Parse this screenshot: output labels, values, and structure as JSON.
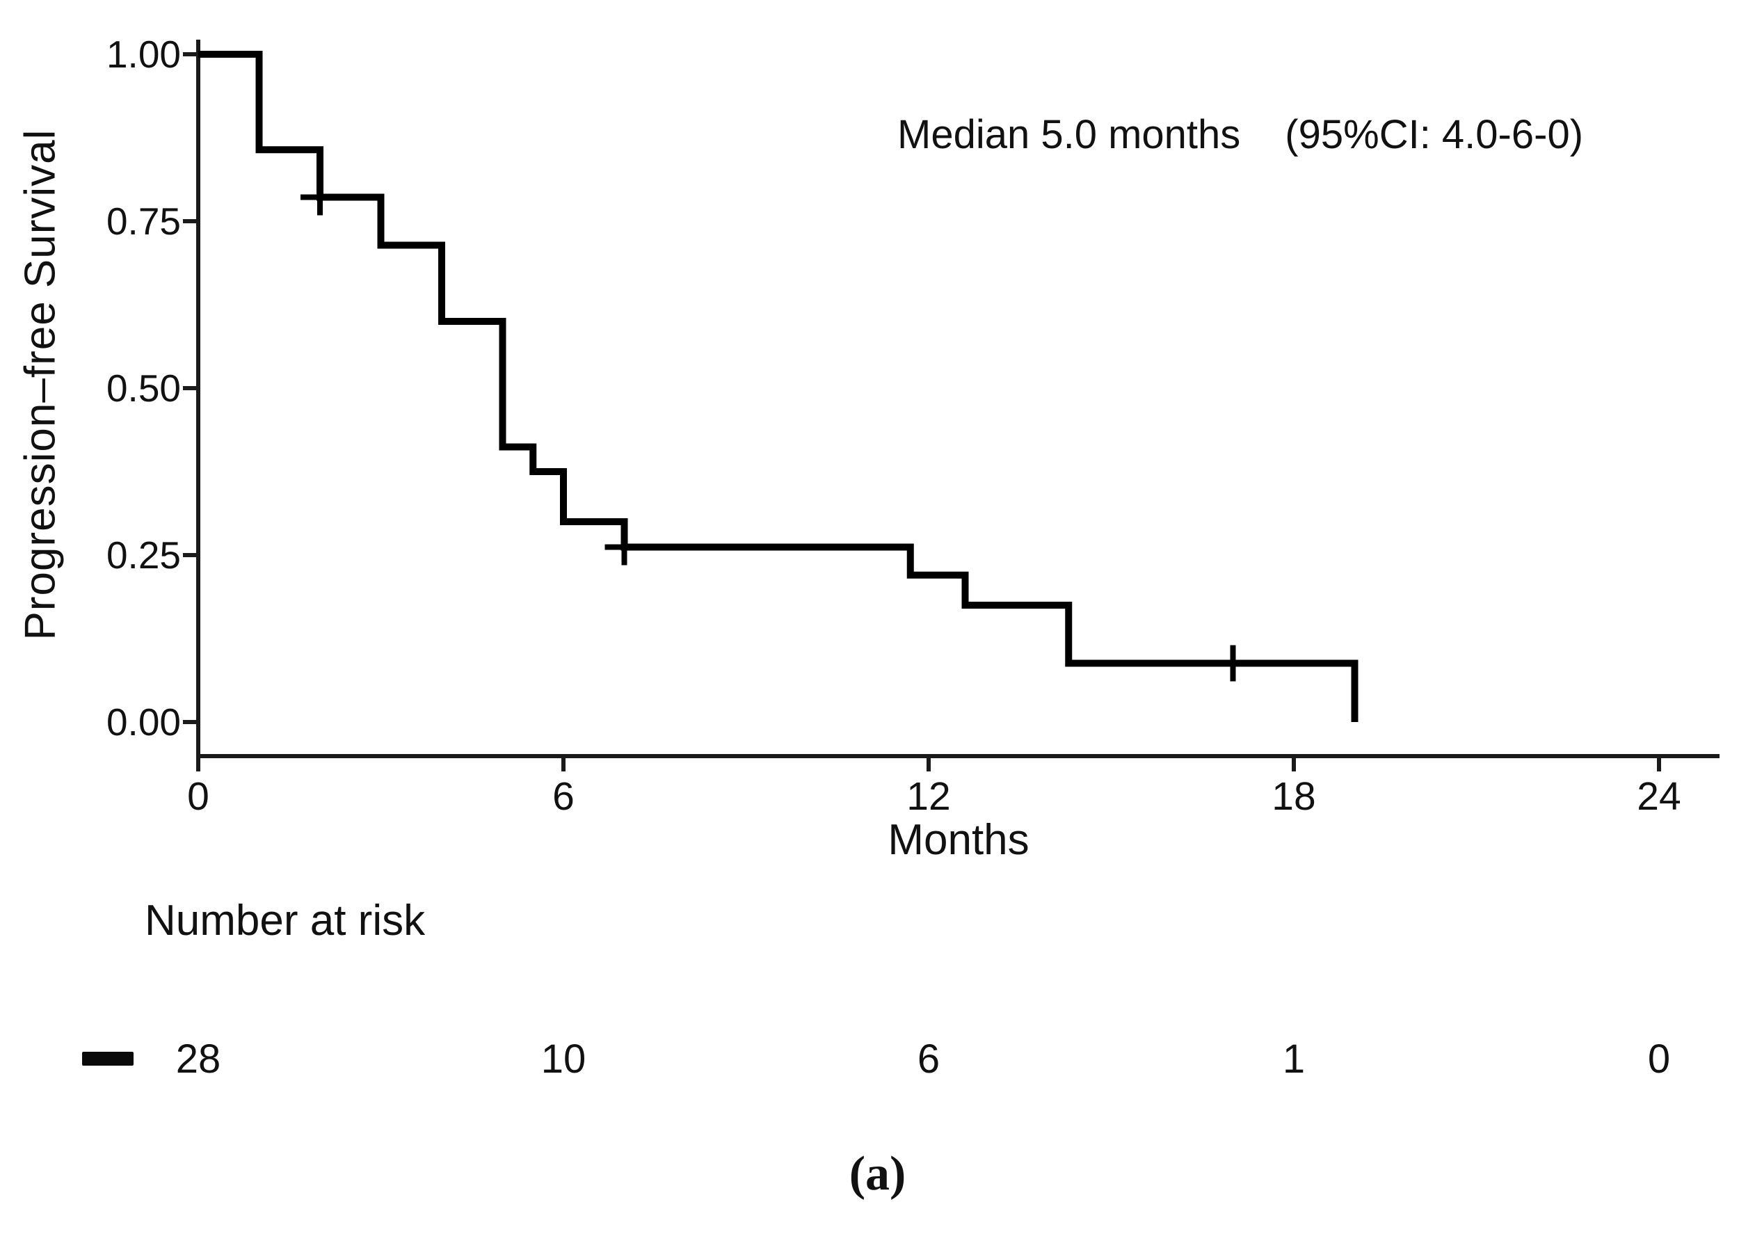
{
  "annotation": {
    "median_label": "Median 5.0 months",
    "ci_label": "(95%CI: 4.0-6-0)"
  },
  "y_axis": {
    "label": "Progression–free Survival",
    "ticks": [
      "1.00",
      "0.75",
      "0.50",
      "0.25",
      "0.00"
    ]
  },
  "x_axis": {
    "label": "Months",
    "ticks": [
      "0",
      "6",
      "12",
      "18",
      "24"
    ]
  },
  "risk_table": {
    "title": "Number at risk",
    "legend_color": "#0a0a0a",
    "values": [
      "28",
      "10",
      "6",
      "1",
      "0"
    ]
  },
  "caption": "(a)",
  "colors": {
    "curve": "#000000",
    "axis": "#1a1a1a",
    "background": "#ffffff"
  },
  "chart_data": {
    "type": "line",
    "subtype": "kaplan-meier-step",
    "title": "",
    "xlabel": "Months",
    "ylabel": "Progression–free Survival",
    "xlim": [
      0,
      24
    ],
    "ylim": [
      0,
      1
    ],
    "x_ticks": [
      0,
      6,
      12,
      18,
      24
    ],
    "y_ticks": [
      1.0,
      0.75,
      0.5,
      0.25,
      0.0
    ],
    "grid": false,
    "legend_position": "none",
    "median_months": 5.0,
    "ci_95_text": "4.0-6-0",
    "steps": [
      {
        "t": 0,
        "s": 1.0
      },
      {
        "t": 1,
        "s": 0.857
      },
      {
        "t": 2,
        "s": 0.786
      },
      {
        "t": 3,
        "s": 0.714
      },
      {
        "t": 4,
        "s": 0.6
      },
      {
        "t": 5,
        "s": 0.412
      },
      {
        "t": 5.5,
        "s": 0.375
      },
      {
        "t": 6,
        "s": 0.3
      },
      {
        "t": 7,
        "s": 0.262
      },
      {
        "t": 11.7,
        "s": 0.22
      },
      {
        "t": 12.6,
        "s": 0.175
      },
      {
        "t": 14.3,
        "s": 0.088
      },
      {
        "t": 19,
        "s": 0.0
      }
    ],
    "censor_marks": [
      {
        "t": 2,
        "s": 0.786
      },
      {
        "t": 7,
        "s": 0.262
      },
      {
        "t": 17,
        "s": 0.088
      }
    ],
    "number_at_risk": {
      "times": [
        0,
        6,
        12,
        18,
        24
      ],
      "counts": [
        28,
        10,
        6,
        1,
        0
      ]
    }
  }
}
